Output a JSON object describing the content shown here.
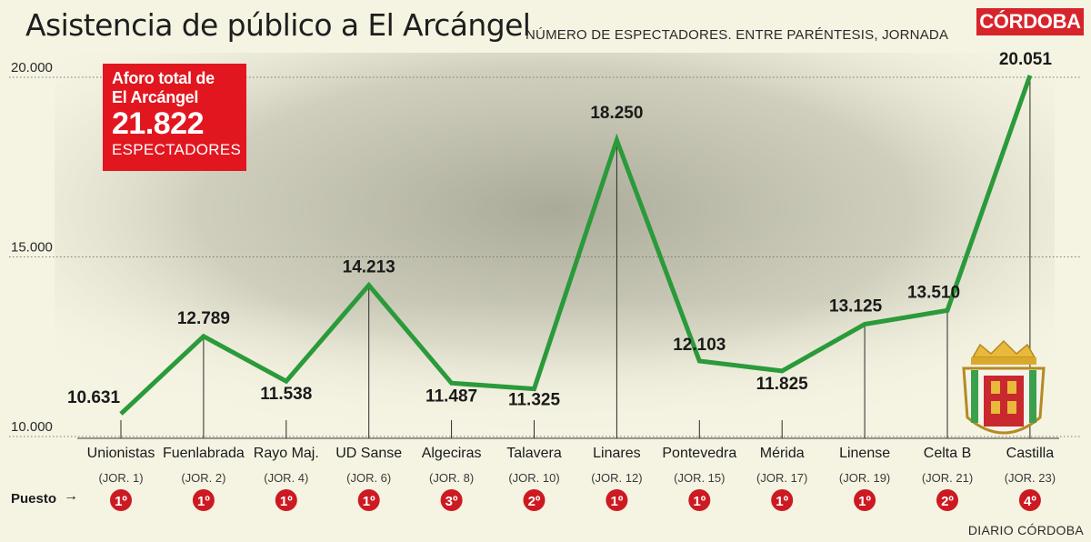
{
  "header": {
    "title": "Asistencia de público a El Arcángel",
    "subtitle": "NÚMERO DE ESPECTADORES. ENTRE PARÉNTESIS, JORNADA",
    "brand": "CÓRDOBA"
  },
  "capacity": {
    "line1": "Aforo total de",
    "line2": "El Arcángel",
    "number": "21.822",
    "unit": "ESPECTADORES"
  },
  "footer": {
    "puesto_label": "Puesto",
    "credit": "DIARIO CÓRDOBA"
  },
  "colors": {
    "line": "#2a9a3a",
    "badge": "#cc1a22",
    "capacity_box": "#e2161f",
    "brand": "#d7242b"
  },
  "chart_data": {
    "type": "line",
    "ylim": [
      10000,
      20000
    ],
    "yticks": [
      10000,
      15000,
      20000
    ],
    "ytick_labels": [
      "10.000",
      "15.000",
      "20.000"
    ],
    "grid": true,
    "categories": [
      "Unionistas",
      "Fuenlabrada",
      "Rayo Maj.",
      "UD Sanse",
      "Algeciras",
      "Talavera",
      "Linares",
      "Pontevedra",
      "Mérida",
      "Linense",
      "Celta B",
      "Castilla"
    ],
    "jornadas": [
      "(JOR. 1)",
      "(JOR. 2)",
      "(JOR. 4)",
      "(JOR. 6)",
      "(JOR. 8)",
      "(JOR. 10)",
      "(JOR. 12)",
      "(JOR. 15)",
      "(JOR. 17)",
      "(JOR. 19)",
      "(JOR. 21)",
      "(JOR. 23)"
    ],
    "values": [
      10631,
      12789,
      11538,
      14213,
      11487,
      11325,
      18250,
      12103,
      11825,
      13125,
      13510,
      20051
    ],
    "value_labels": [
      "10.631",
      "12.789",
      "11.538",
      "14.213",
      "11.487",
      "11.325",
      "18.250",
      "12.103",
      "11.825",
      "13.125",
      "13.510",
      "20.051"
    ],
    "puesto": [
      "1º",
      "1º",
      "1º",
      "1º",
      "3º",
      "2º",
      "1º",
      "1º",
      "1º",
      "1º",
      "2º",
      "4º"
    ]
  }
}
